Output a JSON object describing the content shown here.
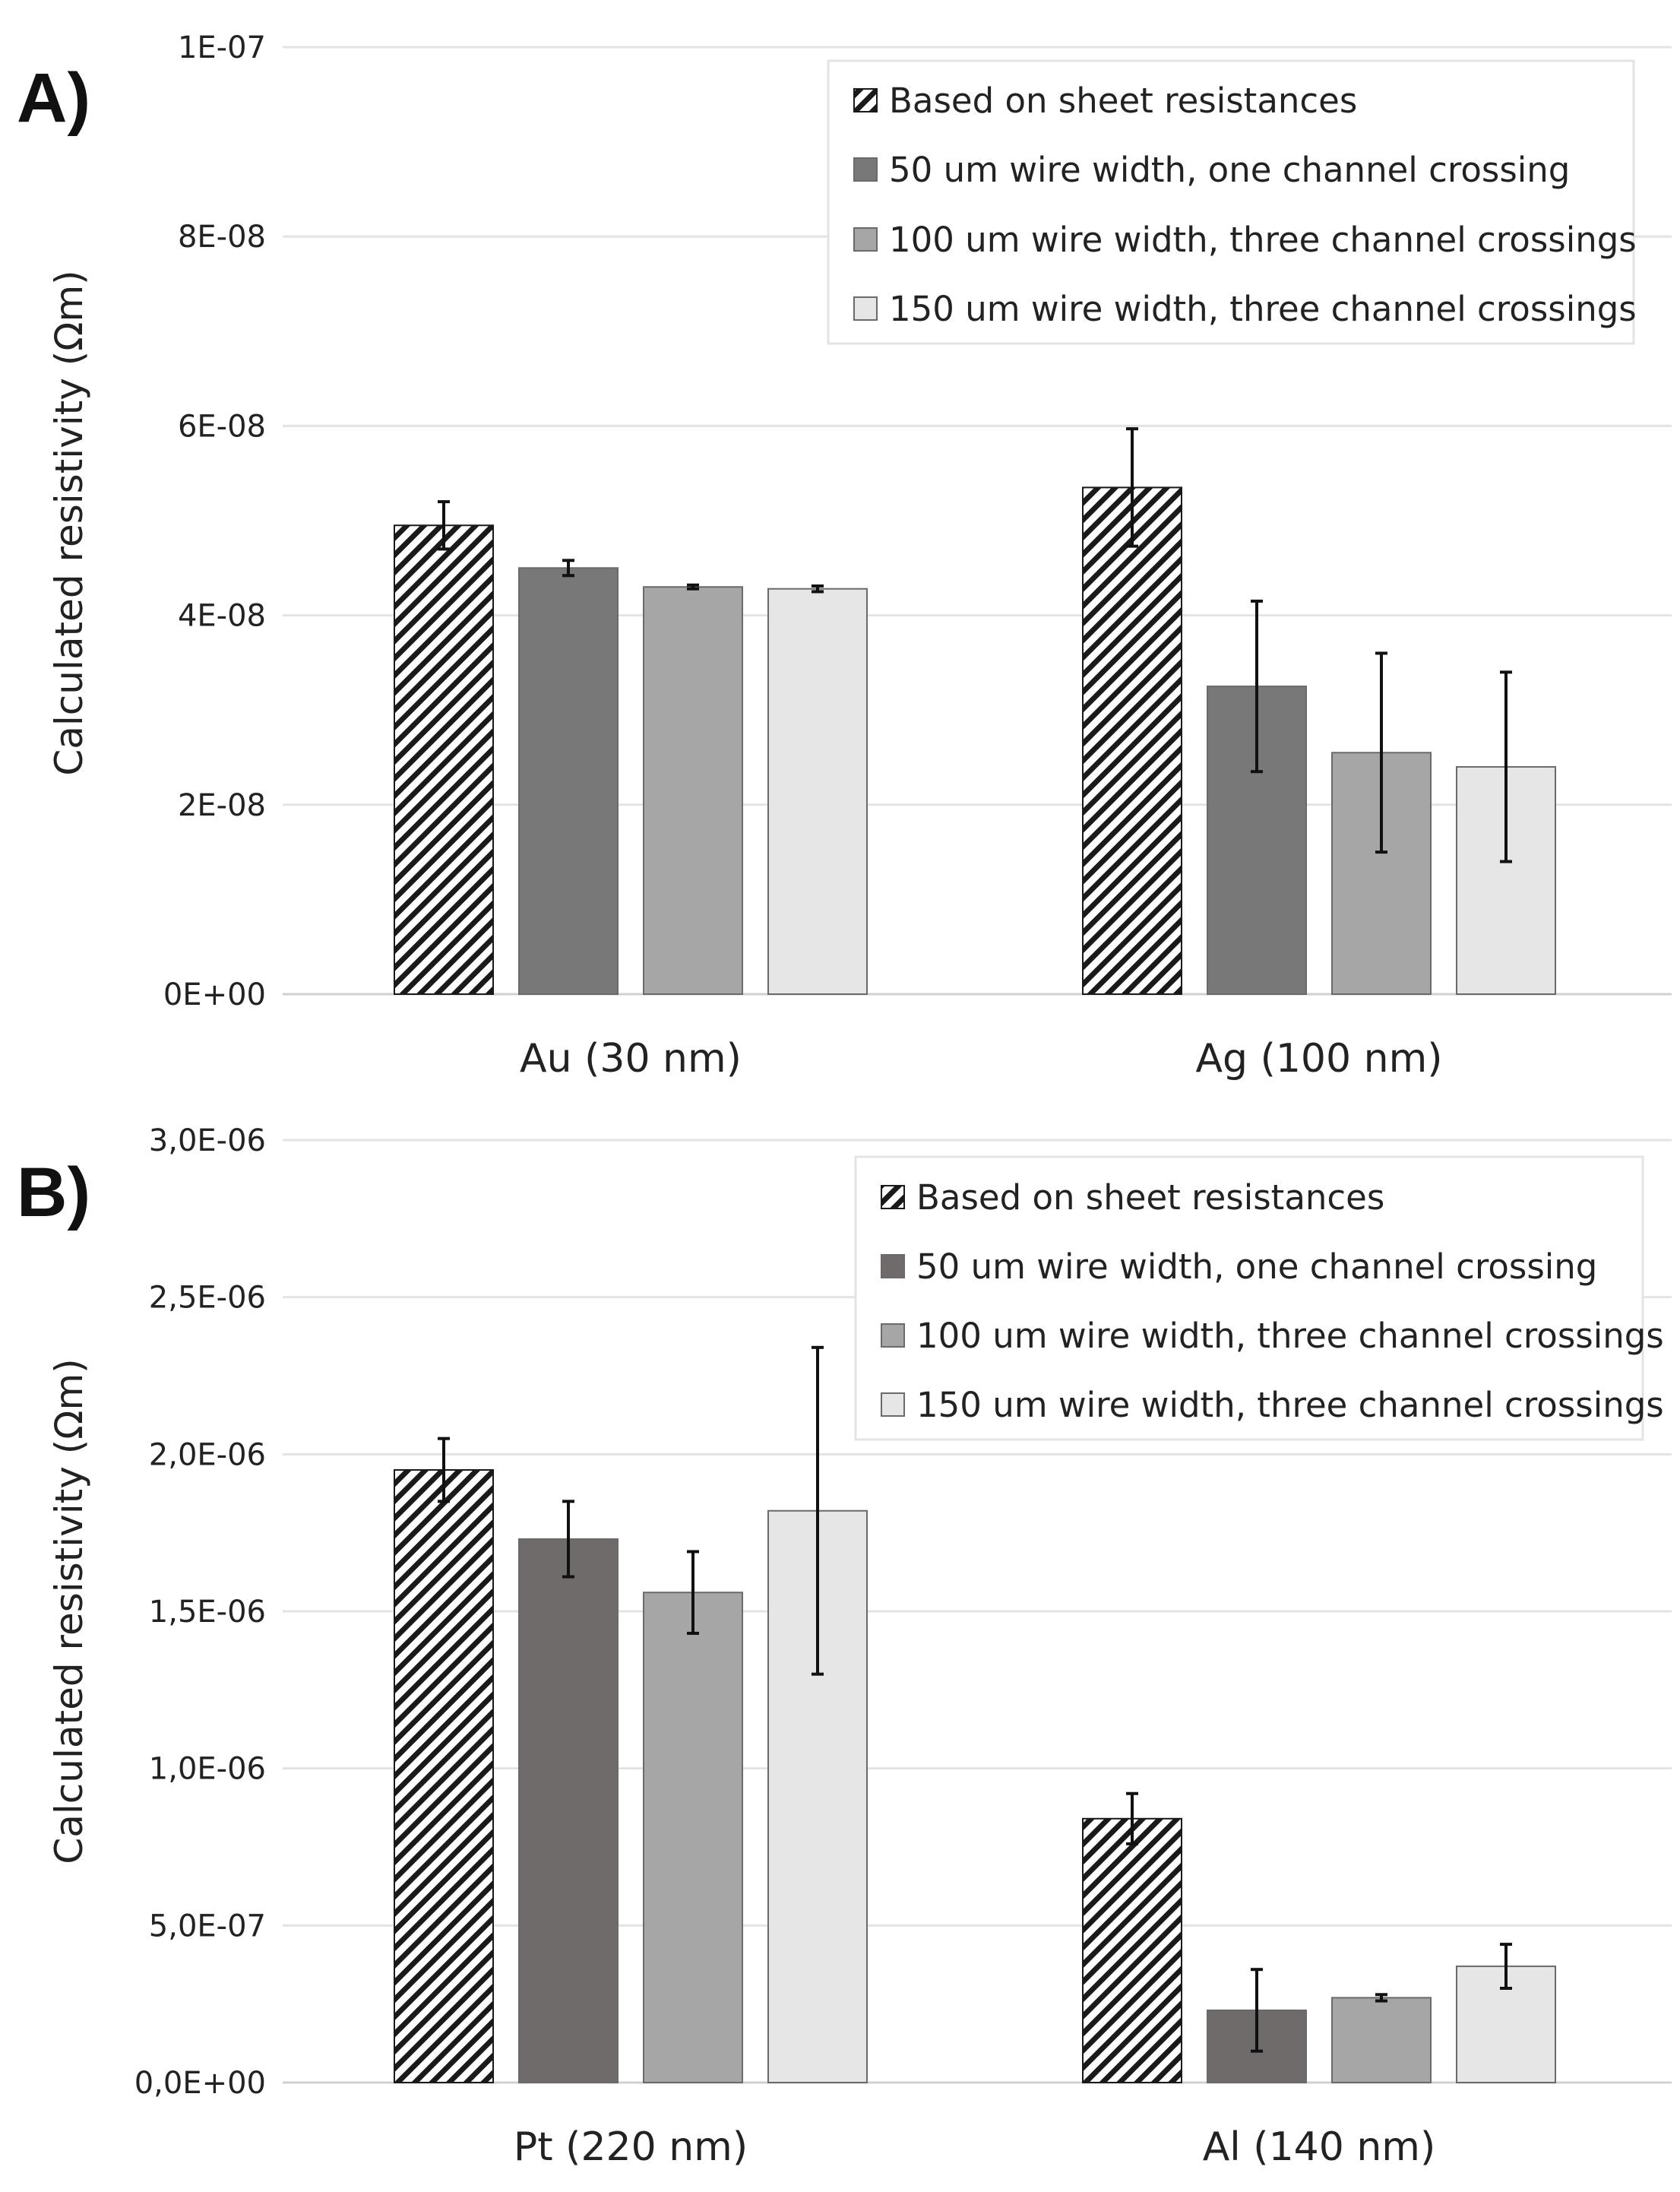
{
  "chart_data": [
    {
      "panel": "A)",
      "type": "bar",
      "ylabel": "Calculated resistivity (Ωm)",
      "xlabel": "",
      "ylim": [
        0,
        1e-07
      ],
      "yticks": [
        0,
        2e-08,
        4e-08,
        6e-08,
        8e-08,
        1e-07
      ],
      "ytick_labels": [
        "0E+00",
        "2E-08",
        "4E-08",
        "6E-08",
        "8E-08",
        "1E-07"
      ],
      "categories": [
        "Au (30 nm)",
        "Ag (100 nm)"
      ],
      "grid": true,
      "legend_position": "top-right",
      "series": [
        {
          "name": "Based on sheet resistances",
          "style": "hatched",
          "color": "#1a1a1a",
          "values": [
            4.95e-08,
            5.35e-08
          ],
          "errors": [
            2.5e-09,
            6.2e-09
          ]
        },
        {
          "name": "50 um wire width, one channel crossing",
          "style": "solid",
          "color": "#787878",
          "values": [
            4.5e-08,
            3.25e-08
          ],
          "errors": [
            8e-10,
            9e-09
          ]
        },
        {
          "name": "100 um wire width, three channel crossings",
          "style": "solid",
          "color": "#a6a6a6",
          "values": [
            4.3e-08,
            2.55e-08
          ],
          "errors": [
            2e-10,
            1.05e-08
          ]
        },
        {
          "name": "150 um wire width, three channel crossings",
          "style": "solid",
          "color": "#e6e6e6",
          "values": [
            4.28e-08,
            2.4e-08
          ],
          "errors": [
            3e-10,
            1e-08
          ]
        }
      ]
    },
    {
      "panel": "B)",
      "type": "bar",
      "ylabel": "Calculated resistivity (Ωm)",
      "xlabel": "",
      "ylim": [
        0,
        3e-06
      ],
      "yticks": [
        0,
        5e-07,
        1e-06,
        1.5e-06,
        2e-06,
        2.5e-06,
        3e-06
      ],
      "ytick_labels": [
        "0,0E+00",
        "5,0E-07",
        "1,0E-06",
        "1,5E-06",
        "2,0E-06",
        "2,5E-06",
        "3,0E-06"
      ],
      "categories": [
        "Pt (220 nm)",
        "Al (140 nm)"
      ],
      "grid": true,
      "legend_position": "top-right",
      "series": [
        {
          "name": "Based on sheet resistances",
          "style": "hatched",
          "color": "#1a1a1a",
          "values": [
            1.95e-06,
            8.4e-07
          ],
          "errors": [
            1e-07,
            8e-08
          ]
        },
        {
          "name": "50 um wire width, one channel crossing",
          "style": "solid",
          "color": "#6f6b6b",
          "values": [
            1.73e-06,
            2.3e-07
          ],
          "errors": [
            1.2e-07,
            1.3e-07
          ]
        },
        {
          "name": "100 um wire width, three channel crossings",
          "style": "solid",
          "color": "#a6a6a6",
          "values": [
            1.56e-06,
            2.7e-07
          ],
          "errors": [
            1.3e-07,
            1e-08
          ]
        },
        {
          "name": "150 um wire width, three channel crossings",
          "style": "solid",
          "color": "#e6e6e6",
          "values": [
            1.82e-06,
            3.7e-07
          ],
          "errors": [
            5.2e-07,
            7e-08
          ]
        }
      ]
    }
  ]
}
